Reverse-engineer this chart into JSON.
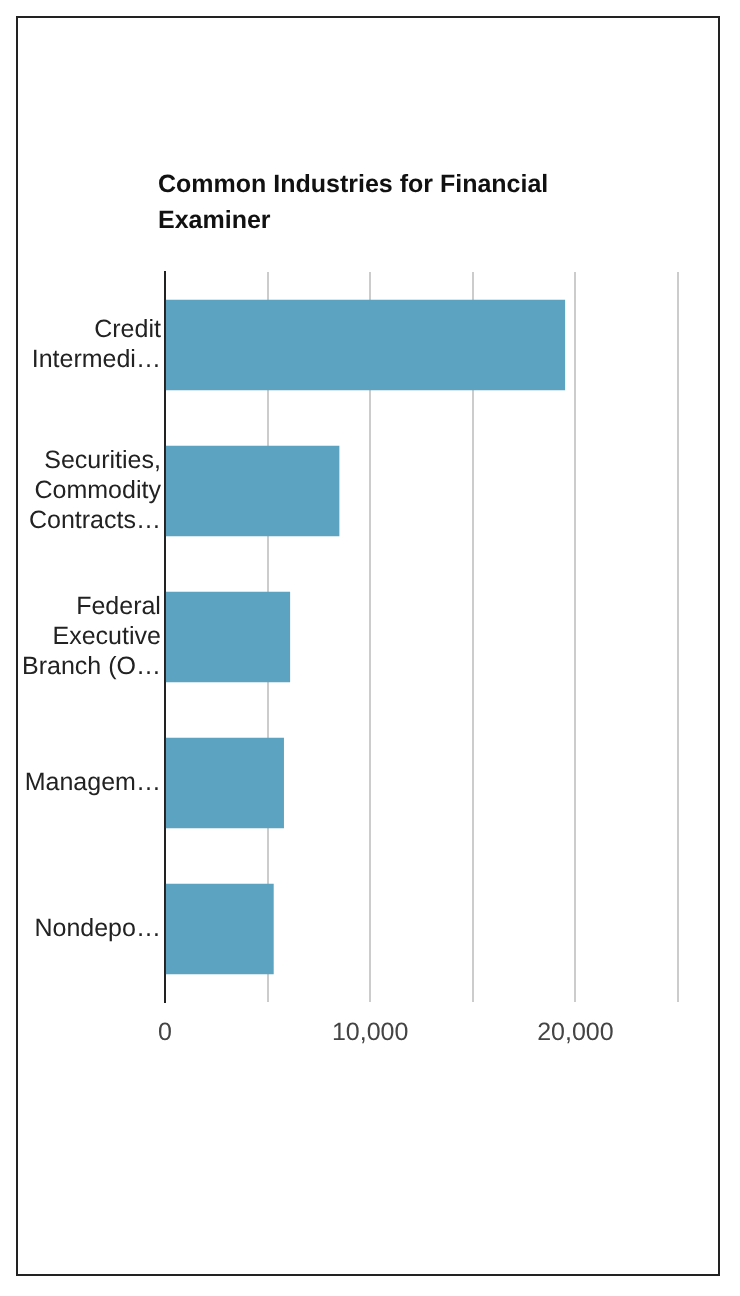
{
  "chart_data": {
    "type": "bar",
    "orientation": "horizontal",
    "title": "Common Industries for Financial Examiner",
    "categories": [
      "Credit Intermedi…",
      "Securities, Commodity Contracts…",
      "Federal Executive Branch (O…",
      "Managem…",
      "Nondepo…"
    ],
    "values": [
      19500,
      8500,
      6100,
      5800,
      5300
    ],
    "color": "#5ba3c0",
    "xlim": [
      0,
      25000
    ],
    "xticks": [
      {
        "value": 0,
        "label": "0"
      },
      {
        "value": 5000,
        "label": null
      },
      {
        "value": 10000,
        "label": "10,000"
      },
      {
        "value": 15000,
        "label": null
      },
      {
        "value": 20000,
        "label": "20,000"
      },
      {
        "value": 25000,
        "label": null
      }
    ],
    "grid": "x",
    "legend": false
  }
}
